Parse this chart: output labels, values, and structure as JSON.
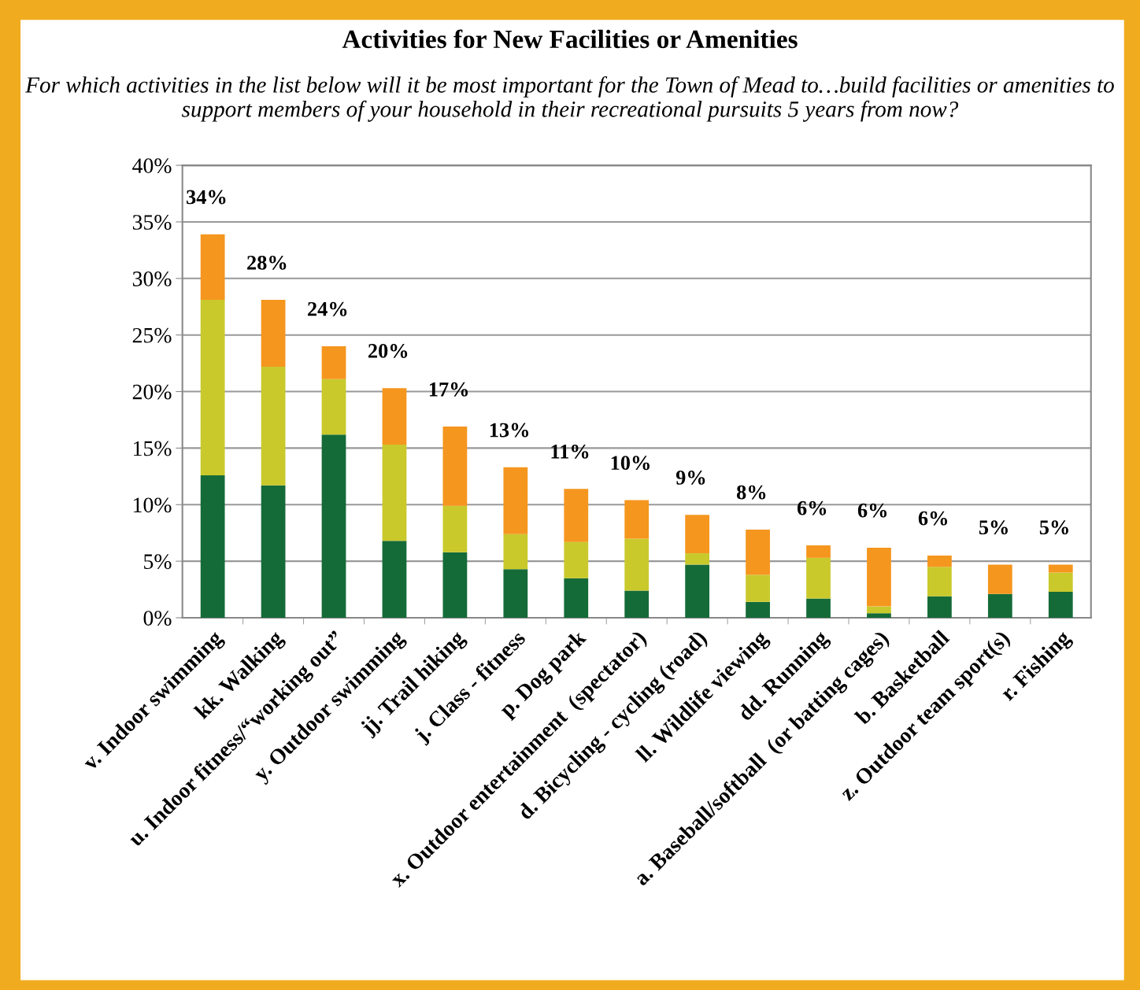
{
  "chart_data": {
    "type": "bar",
    "stacked": true,
    "title": "Activities for New Facilities or Amenities",
    "subtitle": "For which activities in the list below will it be most important for the Town of Mead to…build facilities or amenities to support members of your household in their recreational pursuits 5 years from now?",
    "categories": [
      "v. Indoor swimming",
      "kk. Walking",
      "u. Indoor fitness/“working out”",
      "y. Outdoor swimming",
      "jj. Trail hiking",
      "j. Class - fitness",
      "p. Dog park",
      "x. Outdoor entertainment  (spectator)",
      "d. Bicycling - cycling (road)",
      "ll. Wildlife viewing",
      "dd. Running",
      "a. Baseball/softball  (or batting cages)",
      "b. Basketball",
      "z. Outdoor team sport(s)",
      "r. Fishing"
    ],
    "series": [
      {
        "color": "#156b38",
        "values": [
          12.6,
          11.7,
          16.2,
          6.8,
          5.8,
          4.3,
          3.5,
          2.4,
          4.7,
          1.4,
          1.7,
          0.4,
          1.9,
          2.1,
          2.3
        ]
      },
      {
        "color": "#c9c92c",
        "values": [
          15.5,
          10.5,
          4.9,
          8.5,
          4.1,
          3.1,
          3.2,
          4.6,
          1.0,
          2.4,
          3.6,
          0.6,
          2.6,
          0,
          1.7
        ]
      },
      {
        "color": "#f5961e",
        "values": [
          5.8,
          5.9,
          2.9,
          5.0,
          7.0,
          5.9,
          4.7,
          3.4,
          3.4,
          4.0,
          1.1,
          5.2,
          1.0,
          2.6,
          0.7
        ]
      }
    ],
    "totals": [
      "34%",
      "28%",
      "24%",
      "20%",
      "17%",
      "13%",
      "11%",
      "10%",
      "9%",
      "8%",
      "6%",
      "6%",
      "6%",
      "5%",
      "5%"
    ],
    "ylim": [
      0,
      40
    ],
    "yticks": [
      {
        "value": 0,
        "label": "0%"
      },
      {
        "value": 5,
        "label": "5%"
      },
      {
        "value": 10,
        "label": "10%"
      },
      {
        "value": 15,
        "label": "15%"
      },
      {
        "value": 20,
        "label": "20%"
      },
      {
        "value": 25,
        "label": "25%"
      },
      {
        "value": 30,
        "label": "30%"
      },
      {
        "value": 35,
        "label": "35%"
      },
      {
        "value": 40,
        "label": "40%"
      }
    ],
    "grid": "y"
  }
}
